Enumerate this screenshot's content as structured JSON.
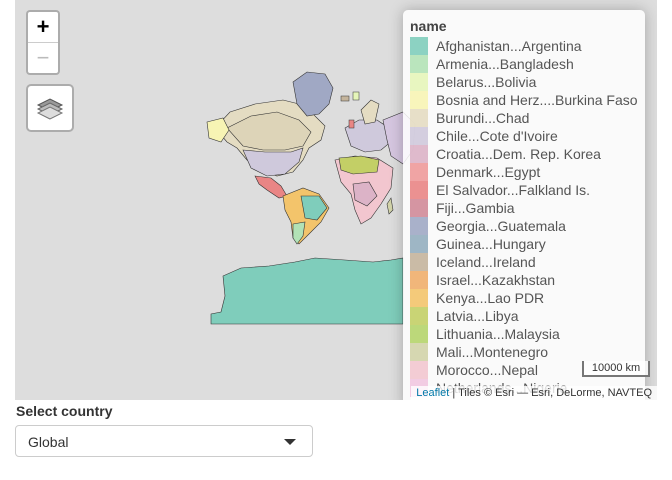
{
  "map": {
    "zoom_in": "+",
    "zoom_out": "−",
    "layers_icon": "layers-icon",
    "legend": {
      "title": "name",
      "items": [
        {
          "label": "Afghanistan...Argentina",
          "color": "#7fcdbb"
        },
        {
          "label": "Armenia...Bangladesh",
          "color": "#b2e2b6"
        },
        {
          "label": "Belarus...Bolivia",
          "color": "#e5f5b9"
        },
        {
          "label": "Bosnia and Herz....Burkina Faso",
          "color": "#f7f4b4"
        },
        {
          "label": "Burundi...Chad",
          "color": "#e4dcc2"
        },
        {
          "label": "Chile...Cote d'Ivoire",
          "color": "#cfc9dc"
        },
        {
          "label": "Croatia...Dem. Rep. Korea",
          "color": "#dcb3c7"
        },
        {
          "label": "Denmark...Egypt",
          "color": "#ee9a9a"
        },
        {
          "label": "El Salvador...Falkland Is.",
          "color": "#e98585"
        },
        {
          "label": "Fiji...Gambia",
          "color": "#d08a98"
        },
        {
          "label": "Georgia...Guatemala",
          "color": "#a0a8c4"
        },
        {
          "label": "Guinea...Hungary",
          "color": "#94aebf"
        },
        {
          "label": "Iceland...Ireland",
          "color": "#c4b49c"
        },
        {
          "label": "Israel...Kazakhstan",
          "color": "#f0ae6b"
        },
        {
          "label": "Kenya...Lao PDR",
          "color": "#f3c46b"
        },
        {
          "label": "Latvia...Libya",
          "color": "#c3cf66"
        },
        {
          "label": "Lithuania...Malaysia",
          "color": "#b5d46c"
        },
        {
          "label": "Mali...Montenegro",
          "color": "#d2d3a9"
        },
        {
          "label": "Morocco...Nepal",
          "color": "#f2c6cf"
        },
        {
          "label": "Netherlands...Nigeria",
          "color": "#f1c7e0"
        }
      ]
    },
    "scale_label": "10000 km",
    "attribution": {
      "link": "Leaflet",
      "text": " | Tiles © Esri — Esri, DeLorme, NAVTEQ"
    }
  },
  "control": {
    "label": "Select country",
    "selected": "Global"
  }
}
